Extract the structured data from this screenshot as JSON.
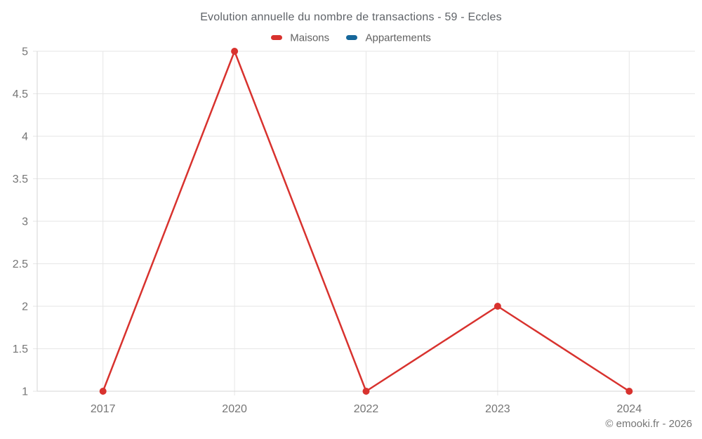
{
  "title": "Evolution annuelle du nombre de transactions - 59 - Eccles",
  "legend": [
    {
      "label": "Maisons",
      "color": "#d8322e"
    },
    {
      "label": "Appartements",
      "color": "#16679a"
    }
  ],
  "copyright": "© emooki.fr - 2026",
  "chart_data": {
    "type": "line",
    "title": "Evolution annuelle du nombre de transactions - 59 - Eccles",
    "categories": [
      "2017",
      "2020",
      "2022",
      "2023",
      "2024"
    ],
    "series": [
      {
        "name": "Maisons",
        "color": "#d8322e",
        "values": [
          1,
          5,
          1,
          2,
          1
        ]
      },
      {
        "name": "Appartements",
        "color": "#16679a",
        "values": []
      }
    ],
    "xlabel": "",
    "ylabel": "",
    "ylim": [
      1,
      5
    ],
    "yticks": [
      1,
      1.5,
      2,
      2.5,
      3,
      3.5,
      4,
      4.5,
      5
    ],
    "grid": true,
    "legend_position": "top-center"
  },
  "colors": {
    "grid": "#e6e6e6",
    "axis": "#d6d6d6",
    "tick_label": "#757575",
    "title_text": "#5f6368"
  }
}
